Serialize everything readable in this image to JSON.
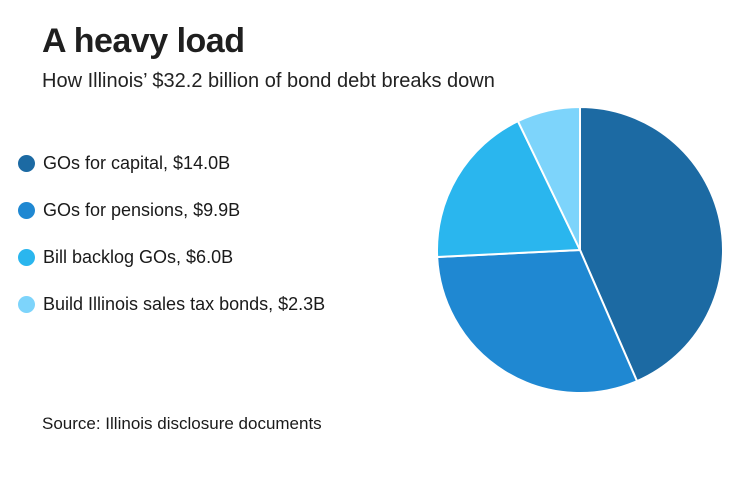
{
  "chart_data": {
    "type": "pie",
    "title": "A heavy load",
    "subtitle": "How Illinois’ $32.2 billion of bond debt breaks down",
    "source": "Source: Illinois disclosure documents",
    "legend_position": "left",
    "slices": [
      {
        "label": "GOs for capital, $14.0B",
        "value": 14.0,
        "color": "#1c6aa3"
      },
      {
        "label": "GOs for pensions, $9.9B",
        "value": 9.9,
        "color": "#1f88d2"
      },
      {
        "label": "Bill backlog GOs, $6.0B",
        "value": 6.0,
        "color": "#2ab6ee"
      },
      {
        "label": "Build Illinois sales tax bonds, $2.3B",
        "value": 2.3,
        "color": "#7dd4fb"
      }
    ]
  }
}
